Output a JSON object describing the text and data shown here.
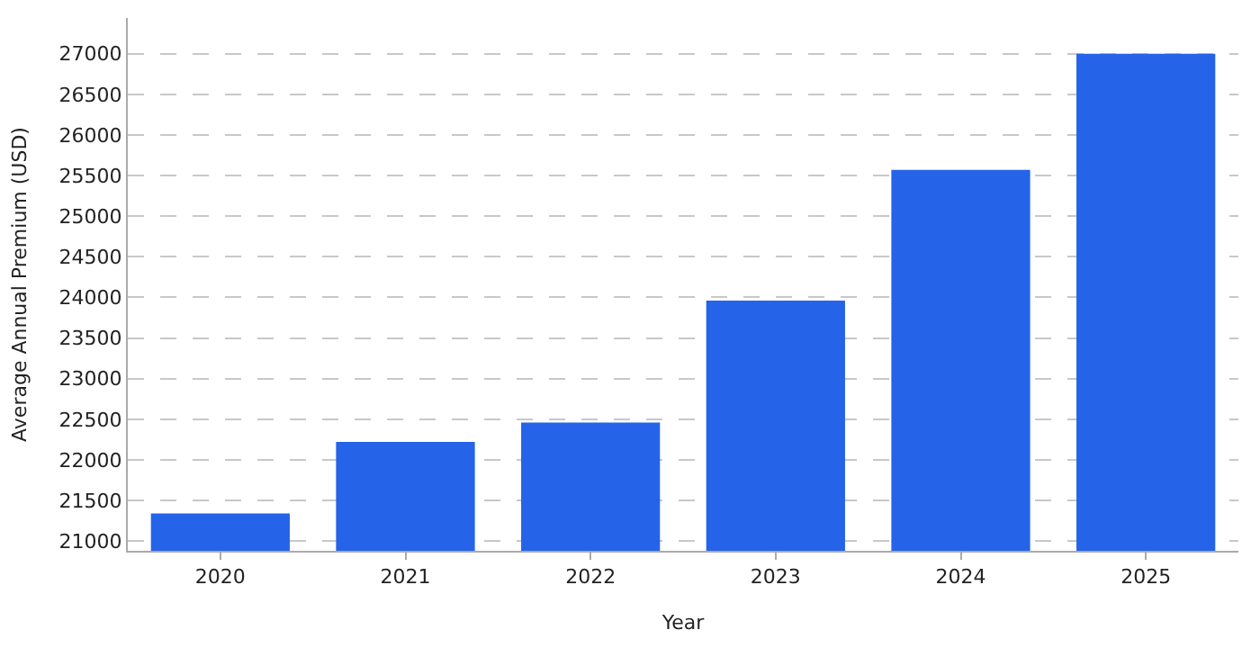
{
  "chart_data": {
    "type": "bar",
    "xlabel": "Year",
    "ylabel": "Average Annual Premium (USD)",
    "categories": [
      "2020",
      "2021",
      "2022",
      "2023",
      "2024",
      "2025"
    ],
    "values": [
      21340,
      22220,
      22460,
      23960,
      25570,
      27000
    ],
    "color": "#2563e9",
    "ylim": [
      20880,
      27440
    ],
    "yticks": [
      21000,
      21500,
      22000,
      22500,
      23000,
      23500,
      24000,
      24500,
      25000,
      25500,
      26000,
      26500,
      27000
    ],
    "grid": "y"
  }
}
